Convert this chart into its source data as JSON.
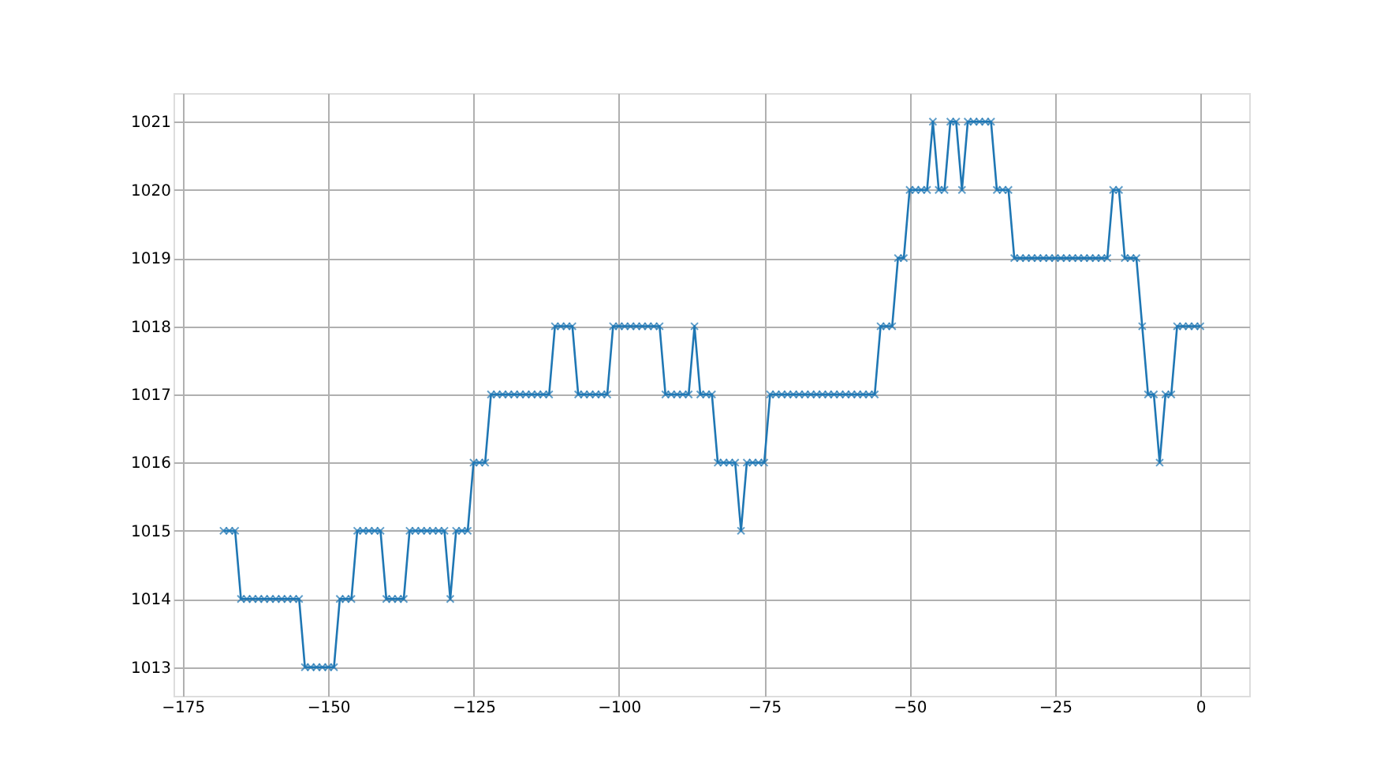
{
  "chart_data": {
    "type": "line",
    "marker": "cross",
    "line_style": "solid",
    "grid": true,
    "xlim": [
      -176.6,
      8.4
    ],
    "xticks": [
      -175,
      -150,
      -125,
      -100,
      -75,
      -50,
      -25,
      0
    ],
    "ylim": [
      1012.58,
      1021.42
    ],
    "yticks": [
      1013,
      1014,
      1015,
      1016,
      1017,
      1018,
      1019,
      1020,
      1021
    ],
    "x": [
      -168,
      -167,
      -166,
      -165,
      -164,
      -163,
      -162,
      -161,
      -160,
      -159,
      -158,
      -157,
      -156,
      -155,
      -154,
      -153,
      -152,
      -151,
      -150,
      -149,
      -148,
      -147,
      -146,
      -145,
      -144,
      -143,
      -142,
      -141,
      -140,
      -139,
      -138,
      -137,
      -136,
      -135,
      -134,
      -133,
      -132,
      -131,
      -130,
      -129,
      -128,
      -127,
      -126,
      -125,
      -124,
      -123,
      -122,
      -121,
      -120,
      -119,
      -118,
      -117,
      -116,
      -115,
      -114,
      -113,
      -112,
      -111,
      -110,
      -109,
      -108,
      -107,
      -106,
      -105,
      -104,
      -103,
      -102,
      -101,
      -100,
      -99,
      -98,
      -97,
      -96,
      -95,
      -94,
      -93,
      -92,
      -91,
      -90,
      -89,
      -88,
      -87,
      -86,
      -85,
      -84,
      -83,
      -82,
      -81,
      -80,
      -79,
      -78,
      -77,
      -76,
      -75,
      -74,
      -73,
      -72,
      -71,
      -70,
      -69,
      -68,
      -67,
      -66,
      -65,
      -64,
      -63,
      -62,
      -61,
      -60,
      -59,
      -58,
      -57,
      -56,
      -55,
      -54,
      -53,
      -52,
      -51,
      -50,
      -49,
      -48,
      -47,
      -46,
      -45,
      -44,
      -43,
      -42,
      -41,
      -40,
      -39,
      -38,
      -37,
      -36,
      -35,
      -34,
      -33,
      -32,
      -31,
      -30,
      -29,
      -28,
      -27,
      -26,
      -25,
      -24,
      -23,
      -22,
      -21,
      -20,
      -19,
      -18,
      -17,
      -16,
      -15,
      -14,
      -13,
      -12,
      -11,
      -10,
      -9,
      -8,
      -7,
      -6,
      -5,
      -4,
      -3,
      -2,
      -1,
      0
    ],
    "series": [
      {
        "color": "#1f77b4",
        "values": [
          1015,
          1015,
          1015,
          1014,
          1014,
          1014,
          1014,
          1014,
          1014,
          1014,
          1014,
          1014,
          1014,
          1014,
          1013,
          1013,
          1013,
          1013,
          1013,
          1013,
          1014,
          1014,
          1014,
          1015,
          1015,
          1015,
          1015,
          1015,
          1014,
          1014,
          1014,
          1014,
          1015,
          1015,
          1015,
          1015,
          1015,
          1015,
          1015,
          1014,
          1015,
          1015,
          1015,
          1016,
          1016,
          1016,
          1017,
          1017,
          1017,
          1017,
          1017,
          1017,
          1017,
          1017,
          1017,
          1017,
          1017,
          1018,
          1018,
          1018,
          1018,
          1017,
          1017,
          1017,
          1017,
          1017,
          1017,
          1018,
          1018,
          1018,
          1018,
          1018,
          1018,
          1018,
          1018,
          1018,
          1017,
          1017,
          1017,
          1017,
          1017,
          1018,
          1017,
          1017,
          1017,
          1016,
          1016,
          1016,
          1016,
          1015,
          1016,
          1016,
          1016,
          1016,
          1017,
          1017,
          1017,
          1017,
          1017,
          1017,
          1017,
          1017,
          1017,
          1017,
          1017,
          1017,
          1017,
          1017,
          1017,
          1017,
          1017,
          1017,
          1017,
          1018,
          1018,
          1018,
          1019,
          1019,
          1020,
          1020,
          1020,
          1020,
          1021,
          1020,
          1020,
          1021,
          1021,
          1020,
          1021,
          1021,
          1021,
          1021,
          1021,
          1020,
          1020,
          1020,
          1019,
          1019,
          1019,
          1019,
          1019,
          1019,
          1019,
          1019,
          1019,
          1019,
          1019,
          1019,
          1019,
          1019,
          1019,
          1019,
          1019,
          1020,
          1020,
          1019,
          1019,
          1019,
          1018,
          1017,
          1017,
          1016,
          1017,
          1017,
          1018,
          1018,
          1018,
          1018,
          1018
        ]
      }
    ]
  }
}
